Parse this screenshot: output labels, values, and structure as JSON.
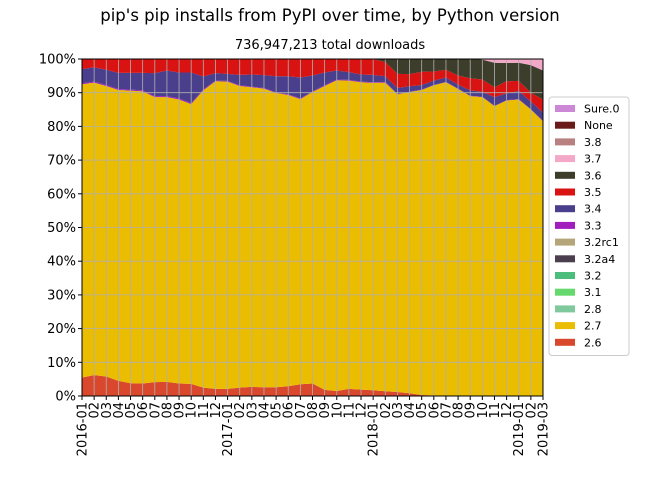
{
  "chart_data": {
    "type": "area",
    "stacked": true,
    "normalized": true,
    "title": "pip's pip installs from PyPI over time, by Python version",
    "subtitle": "736,947,213 total downloads",
    "xlabel": "",
    "ylabel": "",
    "ylim": [
      0,
      100
    ],
    "y_ticks": [
      "0%",
      "10%",
      "20%",
      "30%",
      "40%",
      "50%",
      "60%",
      "70%",
      "80%",
      "90%",
      "100%"
    ],
    "x_ticks": [
      "2016-01",
      "02",
      "03",
      "04",
      "05",
      "06",
      "07",
      "08",
      "09",
      "10",
      "11",
      "12",
      "2017-01",
      "02",
      "03",
      "04",
      "05",
      "06",
      "07",
      "08",
      "09",
      "10",
      "11",
      "12",
      "2018-01",
      "02",
      "03",
      "04",
      "05",
      "06",
      "07",
      "08",
      "09",
      "10",
      "11",
      "12",
      "2019-01",
      "02",
      "2019-03"
    ],
    "x": [
      "2016-01",
      "2016-02",
      "2016-03",
      "2016-04",
      "2016-05",
      "2016-06",
      "2016-07",
      "2016-08",
      "2016-09",
      "2016-10",
      "2016-11",
      "2016-12",
      "2017-01",
      "2017-02",
      "2017-03",
      "2017-04",
      "2017-05",
      "2017-06",
      "2017-07",
      "2017-08",
      "2017-09",
      "2017-10",
      "2017-11",
      "2017-12",
      "2018-01",
      "2018-02",
      "2018-03",
      "2018-04",
      "2018-05",
      "2018-06",
      "2018-07",
      "2018-08",
      "2018-09",
      "2018-10",
      "2018-11",
      "2018-12",
      "2019-01",
      "2019-02",
      "2019-03"
    ],
    "grid": true,
    "legend_position": "right",
    "series": [
      {
        "name": "2.6",
        "color": "#d9482d",
        "values": [
          5.5,
          6.2,
          5.8,
          4.5,
          3.8,
          3.7,
          4.1,
          4.2,
          3.7,
          3.6,
          2.5,
          2.1,
          2.1,
          2.5,
          2.7,
          2.6,
          2.6,
          2.9,
          3.5,
          3.7,
          1.8,
          1.5,
          2.1,
          1.9,
          1.7,
          1.4,
          1.2,
          0.8,
          0.3,
          0.2,
          0.1,
          0.1,
          0.1,
          0.1,
          0.1,
          0.1,
          0.1,
          0.1,
          0.1
        ]
      },
      {
        "name": "2.7",
        "color": "#ebbd00",
        "values": [
          87.0,
          86.8,
          86.2,
          86.3,
          86.8,
          86.7,
          84.6,
          84.5,
          84.3,
          83.0,
          88.2,
          91.3,
          91.2,
          89.5,
          88.9,
          88.6,
          87.3,
          86.4,
          84.6,
          86.5,
          90.2,
          92.2,
          91.5,
          91.2,
          91.2,
          91.6,
          88.3,
          89.4,
          90.5,
          92.0,
          93.0,
          91.0,
          88.9,
          88.6,
          85.9,
          87.6,
          87.9,
          84.9,
          81.4
        ]
      },
      {
        "name": "2.8",
        "color": "#7fc99c",
        "values": [
          0,
          0,
          0,
          0,
          0,
          0,
          0,
          0,
          0,
          0,
          0,
          0,
          0,
          0,
          0,
          0,
          0,
          0,
          0,
          0,
          0,
          0,
          0,
          0,
          0,
          0,
          0,
          0,
          0,
          0,
          0,
          0,
          0,
          0,
          0,
          0,
          0,
          0,
          0
        ]
      },
      {
        "name": "3.1",
        "color": "#66d96e",
        "values": [
          0,
          0,
          0,
          0,
          0,
          0,
          0,
          0,
          0,
          0,
          0,
          0,
          0,
          0,
          0,
          0,
          0,
          0,
          0,
          0,
          0,
          0,
          0,
          0,
          0,
          0,
          0,
          0,
          0,
          0,
          0,
          0,
          0,
          0,
          0,
          0,
          0,
          0,
          0
        ]
      },
      {
        "name": "3.2",
        "color": "#4cbd7a",
        "values": [
          0,
          0,
          0,
          0,
          0,
          0,
          0,
          0,
          0,
          0,
          0,
          0,
          0,
          0,
          0,
          0,
          0,
          0,
          0,
          0,
          0,
          0,
          0,
          0,
          0,
          0,
          0,
          0,
          0,
          0,
          0,
          0,
          0,
          0,
          0,
          0,
          0,
          0,
          0
        ]
      },
      {
        "name": "3.2a4",
        "color": "#4b3e4e",
        "values": [
          0,
          0,
          0,
          0,
          0,
          0,
          0,
          0,
          0,
          0,
          0,
          0,
          0,
          0,
          0,
          0,
          0,
          0,
          0,
          0,
          0,
          0,
          0,
          0,
          0,
          0,
          0,
          0,
          0,
          0,
          0,
          0,
          0,
          0,
          0,
          0,
          0,
          0,
          0
        ]
      },
      {
        "name": "3.2rc1",
        "color": "#b5a67a",
        "values": [
          0,
          0,
          0,
          0,
          0,
          0,
          0,
          0,
          0,
          0,
          0,
          0,
          0,
          0,
          0,
          0,
          0,
          0,
          0,
          0,
          0,
          0,
          0,
          0,
          0,
          0,
          0,
          0,
          0,
          0,
          0,
          0,
          0,
          0,
          0,
          0,
          0,
          0,
          0
        ]
      },
      {
        "name": "3.3",
        "color": "#a11ebd",
        "values": [
          0.3,
          0.3,
          0.3,
          0.3,
          0.3,
          0.3,
          0.3,
          0.3,
          0.3,
          0.3,
          0.3,
          0.2,
          0.2,
          0.2,
          0.2,
          0.2,
          0.2,
          0.2,
          0.2,
          0.2,
          0.2,
          0.2,
          0.2,
          0.2,
          0.2,
          0.2,
          0.1,
          0.1,
          0.1,
          0.1,
          0.1,
          0.1,
          0.1,
          0.1,
          0.1,
          0.1,
          0.1,
          0.1,
          0.1
        ]
      },
      {
        "name": "3.4",
        "color": "#4a3f8c",
        "values": [
          4.2,
          4.2,
          4.5,
          4.8,
          5.0,
          5.2,
          6.8,
          7.6,
          7.7,
          9.1,
          3.8,
          2.2,
          2.1,
          3.1,
          3.6,
          3.8,
          4.8,
          5.4,
          6.2,
          4.7,
          3.8,
          2.7,
          2.3,
          2.1,
          2.2,
          1.7,
          1.8,
          1.6,
          1.4,
          1.3,
          1.3,
          1.2,
          1.6,
          1.5,
          2.6,
          2.0,
          2.4,
          2.3,
          2.5
        ]
      },
      {
        "name": "3.5",
        "color": "#d91212",
        "values": [
          3.0,
          2.5,
          3.2,
          4.1,
          4.1,
          4.1,
          4.2,
          3.4,
          4.0,
          4.0,
          5.2,
          4.2,
          4.4,
          4.7,
          4.6,
          4.8,
          5.1,
          5.1,
          5.5,
          4.9,
          4.0,
          3.4,
          3.9,
          4.6,
          4.7,
          4.2,
          4.2,
          3.6,
          3.9,
          2.7,
          2.3,
          2.7,
          3.6,
          3.6,
          2.9,
          3.6,
          3.0,
          2.6,
          3.9
        ]
      },
      {
        "name": "3.6",
        "color": "#3d3d2b",
        "values": [
          0,
          0,
          0,
          0,
          0,
          0,
          0,
          0,
          0,
          0,
          0,
          0,
          0,
          0,
          0,
          0,
          0,
          0,
          0,
          0,
          0,
          0,
          0,
          0,
          0,
          0.9,
          4.4,
          4.5,
          3.8,
          3.7,
          3.2,
          4.9,
          5.7,
          5.9,
          7.3,
          5.4,
          5.4,
          8.2,
          8.6
        ]
      },
      {
        "name": "3.7",
        "color": "#f2a8c6",
        "values": [
          0,
          0,
          0,
          0,
          0,
          0,
          0,
          0,
          0,
          0,
          0,
          0,
          0,
          0,
          0,
          0,
          0,
          0,
          0,
          0,
          0,
          0,
          0,
          0,
          0,
          0,
          0,
          0,
          0,
          0,
          0,
          0.0,
          0.0,
          0.2,
          1.1,
          1.2,
          1.1,
          1.8,
          3.4
        ]
      },
      {
        "name": "3.8",
        "color": "#b88080",
        "values": [
          0,
          0,
          0,
          0,
          0,
          0,
          0,
          0,
          0,
          0,
          0,
          0,
          0,
          0,
          0,
          0,
          0,
          0,
          0,
          0,
          0,
          0,
          0,
          0,
          0,
          0,
          0,
          0,
          0,
          0,
          0,
          0,
          0,
          0,
          0,
          0,
          0,
          0,
          0
        ]
      },
      {
        "name": "None",
        "color": "#6b1a1a",
        "values": [
          0,
          0,
          0,
          0,
          0,
          0,
          0,
          0,
          0,
          0,
          0,
          0,
          0,
          0,
          0,
          0,
          0,
          0,
          0,
          0,
          0,
          0,
          0,
          0,
          0,
          0,
          0,
          0,
          0,
          0,
          0,
          0,
          0,
          0,
          0,
          0,
          0,
          0,
          0
        ]
      },
      {
        "name": "Sure.0",
        "color": "#cc88d4",
        "values": [
          0,
          0,
          0,
          0,
          0,
          0,
          0,
          0,
          0,
          0,
          0,
          0,
          0,
          0,
          0,
          0,
          0,
          0,
          0,
          0,
          0,
          0,
          0,
          0,
          0,
          0,
          0,
          0,
          0,
          0,
          0,
          0,
          0,
          0,
          0,
          0,
          0,
          0,
          0
        ]
      }
    ]
  }
}
